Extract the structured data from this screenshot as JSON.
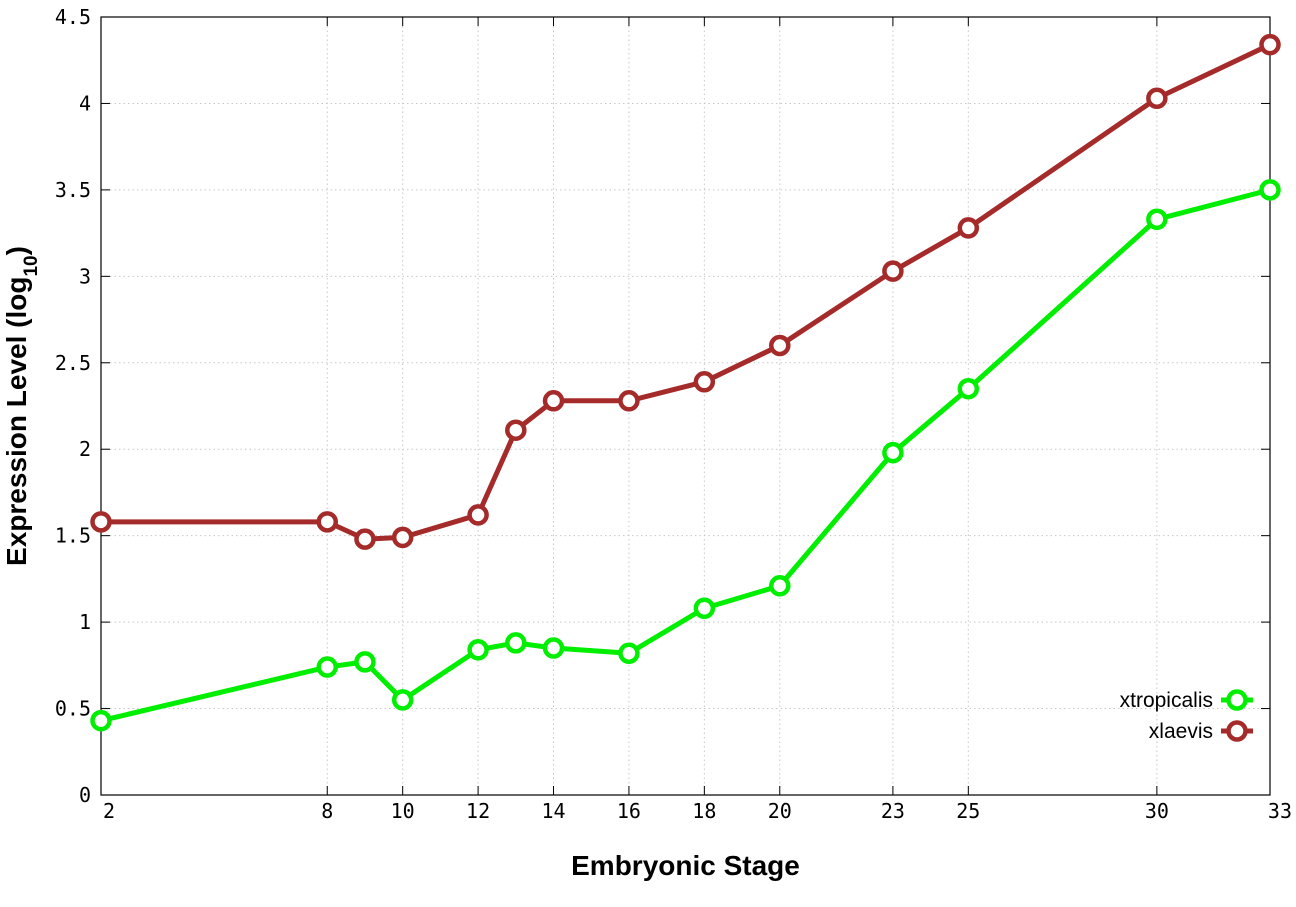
{
  "chart_data": {
    "type": "line",
    "title": "",
    "xlabel": "Embryonic Stage",
    "ylabel": "Expression Level (log",
    "ylabel_subscript": "10",
    "ylabel_suffix": ")",
    "x_ticks": [
      2,
      8,
      10,
      12,
      14,
      16,
      18,
      20,
      23,
      25,
      30,
      33
    ],
    "y_ticks": [
      "0",
      "0.5",
      "1",
      "1.5",
      "2",
      "2.5",
      "3",
      "3.5",
      "4",
      "4.5"
    ],
    "xlim": [
      2,
      33
    ],
    "ylim": [
      0,
      4.5
    ],
    "grid": true,
    "legend_position": "bottom-right",
    "x": [
      2,
      8,
      9,
      10,
      12,
      13,
      14,
      16,
      18,
      20,
      23,
      25,
      30,
      33
    ],
    "series": [
      {
        "name": "xtropicalis",
        "color": "#00ee00",
        "values": [
          0.43,
          0.74,
          0.77,
          0.55,
          0.84,
          0.88,
          0.85,
          0.82,
          1.08,
          1.21,
          1.98,
          2.35,
          3.33,
          3.5
        ]
      },
      {
        "name": "xlaevis",
        "color": "#a52a2a",
        "values": [
          1.58,
          1.58,
          1.48,
          1.49,
          1.62,
          2.11,
          2.28,
          2.28,
          2.39,
          2.6,
          3.03,
          3.28,
          4.03,
          4.34
        ]
      }
    ]
  }
}
